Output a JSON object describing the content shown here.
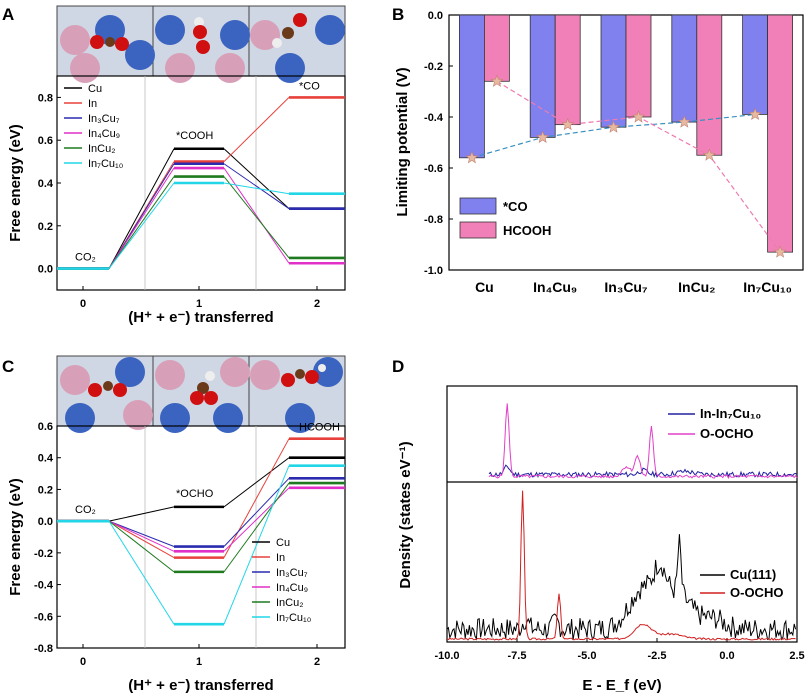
{
  "chart_data": [
    {
      "panel": "A",
      "type": "line",
      "xlabel": "(H⁺ + e⁻) transferred",
      "ylabel": "Free energy (eV)",
      "xticks": [
        "0",
        "1",
        "2"
      ],
      "ylim": [
        -0.1,
        0.9
      ],
      "yticks": [
        0.0,
        0.2,
        0.4,
        0.6,
        0.8
      ],
      "annotations": {
        "start": "CO₂",
        "mid": "*COOH",
        "end": "*CO"
      },
      "series": [
        {
          "name": "Cu",
          "color": "#000000",
          "values": [
            0.0,
            0.56,
            0.28
          ]
        },
        {
          "name": "In",
          "color": "#e8413c",
          "values": [
            0.0,
            0.5,
            0.8
          ]
        },
        {
          "name": "In₃Cu₇",
          "color": "#2b2bb0",
          "values": [
            0.0,
            0.49,
            0.28
          ]
        },
        {
          "name": "In₄Cu₉",
          "color": "#e030c8",
          "values": [
            0.0,
            0.47,
            0.025
          ]
        },
        {
          "name": "InCu₂",
          "color": "#1f7a1f",
          "values": [
            0.0,
            0.43,
            0.05
          ]
        },
        {
          "name": "In₇Cu₁₀",
          "color": "#22d6e8",
          "values": [
            0.0,
            0.4,
            0.35
          ]
        }
      ]
    },
    {
      "panel": "B",
      "type": "bar",
      "ylabel": "Limiting potential (V)",
      "categories": [
        "Cu",
        "In₄Cu₉",
        "In₃Cu₇",
        "InCu₂",
        "In₇Cu₁₀"
      ],
      "ylim": [
        -1.0,
        0.0
      ],
      "yticks": [
        "0.0",
        "-0.2",
        "-0.4",
        "-0.6",
        "-0.8",
        "-1.0"
      ],
      "series": [
        {
          "name": "*CO",
          "color": "#8080ee",
          "values": [
            -0.56,
            -0.48,
            -0.44,
            -0.42,
            -0.39
          ]
        },
        {
          "name": "HCOOH",
          "color": "#f280b8",
          "values": [
            -0.26,
            -0.43,
            -0.4,
            -0.55,
            -0.93
          ]
        }
      ]
    },
    {
      "panel": "C",
      "type": "line",
      "xlabel": "(H⁺ + e⁻) transferred",
      "ylabel": "Free energy (eV)",
      "xticks": [
        "0",
        "1",
        "2"
      ],
      "ylim": [
        -0.8,
        0.6
      ],
      "yticks": [
        "0.6",
        "0.4",
        "0.2",
        "0.0",
        "-0.2",
        "-0.4",
        "-0.6",
        "-0.8"
      ],
      "annotations": {
        "start": "CO₂",
        "mid": "*OCHO",
        "end": "HCOOH"
      },
      "series": [
        {
          "name": "Cu",
          "color": "#000000",
          "values": [
            0.0,
            0.09,
            0.4
          ]
        },
        {
          "name": "In",
          "color": "#e8413c",
          "values": [
            0.0,
            -0.23,
            0.52
          ]
        },
        {
          "name": "In₃Cu₇",
          "color": "#2b2bb0",
          "values": [
            0.0,
            -0.16,
            0.27
          ]
        },
        {
          "name": "In₄Cu₉",
          "color": "#e030c8",
          "values": [
            0.0,
            -0.19,
            0.21
          ]
        },
        {
          "name": "InCu₂",
          "color": "#1f7a1f",
          "values": [
            0.0,
            -0.32,
            0.24
          ]
        },
        {
          "name": "In₇Cu₁₀",
          "color": "#22d6e8",
          "values": [
            0.0,
            -0.65,
            0.35
          ]
        }
      ]
    },
    {
      "panel": "D",
      "type": "line",
      "xlabel": "E - E_f (eV)",
      "ylabel": "Density (states eV⁻¹)",
      "xlim": [
        -10.0,
        2.5
      ],
      "xticks": [
        "-10.0",
        "-7.5",
        "-5.0",
        "-2.5",
        "0.0",
        "2.5"
      ],
      "top_legend": [
        "In-In₇Cu₁₀",
        "O-OCHO"
      ],
      "bottom_legend": [
        "Cu(111)",
        "O-OCHO"
      ],
      "colors": {
        "in": "#2020a0",
        "o_top": "#e040c8",
        "cu": "#000000",
        "o_bottom": "#d02020"
      }
    }
  ]
}
